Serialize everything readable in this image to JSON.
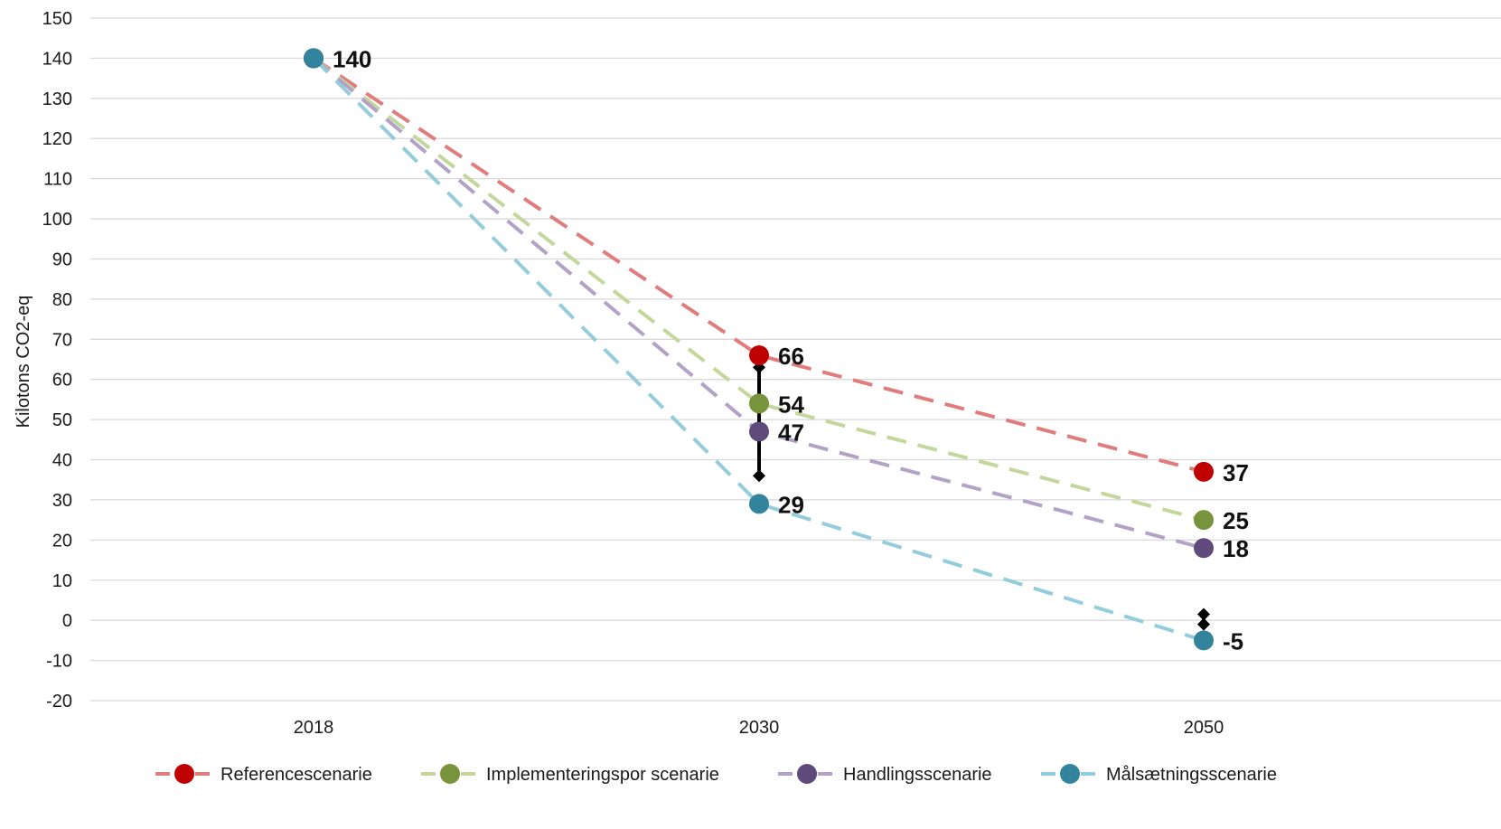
{
  "chart_data": {
    "type": "line",
    "ylabel": "Kilotons CO2-eq",
    "xlabel": "",
    "ylim": [
      -20,
      150
    ],
    "yticks": [
      -20,
      -10,
      0,
      10,
      20,
      30,
      40,
      50,
      60,
      70,
      80,
      90,
      100,
      110,
      120,
      130,
      140,
      150
    ],
    "categories": [
      "2018",
      "2030",
      "2050"
    ],
    "grid": true,
    "legend_position": "bottom",
    "series": [
      {
        "name": "Referencescenarie",
        "values": [
          140,
          66,
          37
        ],
        "labels": [
          "",
          "66",
          "37"
        ],
        "line_color": "#e07c7c",
        "marker_color": "#c00000"
      },
      {
        "name": "Implementeringspor scenarie",
        "values": [
          140,
          54,
          25
        ],
        "labels": [
          "",
          "54",
          "25"
        ],
        "line_color": "#c3d69b",
        "marker_color": "#77933c"
      },
      {
        "name": "Handlingsscenarie",
        "values": [
          140,
          47,
          18
        ],
        "labels": [
          "",
          "47",
          "18"
        ],
        "line_color": "#b3a2c7",
        "marker_color": "#604a7b"
      },
      {
        "name": "Målsætningsscenarie",
        "values": [
          140,
          29,
          -5
        ],
        "labels": [
          "140",
          "29",
          "-5"
        ],
        "line_color": "#93cddd",
        "marker_color": "#31849b"
      }
    ],
    "range_bars": [
      {
        "category": "2030",
        "low": 36,
        "high": 63
      },
      {
        "category": "2050",
        "low": -1,
        "high": 1.5
      }
    ]
  }
}
